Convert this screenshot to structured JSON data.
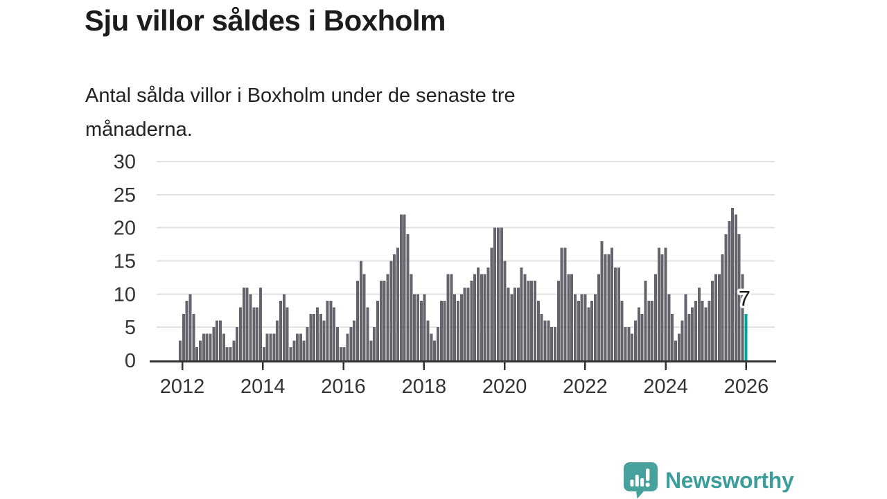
{
  "page": {
    "background": "#ffffff"
  },
  "header": {
    "title": "Sju villor såldes i Boxholm",
    "subtitle": "Antal sålda villor i Boxholm under de senaste tre månaderna.",
    "subtitle_lines": [
      "Antal sålda villor i Boxholm under de senaste tre",
      "månaderna."
    ]
  },
  "chart_data": {
    "type": "bar",
    "title": "Sju villor såldes i Boxholm",
    "subtitle": "Antal sålda villor i Boxholm under de senaste tre månaderna.",
    "frequency": "monthly",
    "start_month": "2011-12",
    "end_month": "2026-01",
    "ylim": [
      0,
      30
    ],
    "y_ticks": [
      0,
      5,
      10,
      15,
      20,
      25,
      30
    ],
    "x_tick_years": [
      "2012",
      "2014",
      "2016",
      "2018",
      "2020",
      "2022",
      "2024",
      "2026"
    ],
    "grid": true,
    "legend": false,
    "bar_color": "#63646c",
    "highlight_color": "#00a59d",
    "axis_color": "#333333",
    "grid_color": "#e2e2e2",
    "label_color": "#333333",
    "values": [
      3,
      7,
      9,
      10,
      7,
      2,
      3,
      4,
      4,
      4,
      5,
      6,
      6,
      4,
      2,
      2,
      3,
      5,
      8,
      11,
      11,
      10,
      8,
      8,
      11,
      2,
      4,
      4,
      4,
      6,
      9,
      10,
      8,
      2,
      3,
      4,
      4,
      3,
      5,
      7,
      7,
      8,
      7,
      6,
      9,
      9,
      8,
      5,
      2,
      2,
      4,
      5,
      6,
      12,
      15,
      13,
      8,
      3,
      5,
      9,
      12,
      12,
      13,
      15,
      16,
      17,
      22,
      22,
      19,
      13,
      10,
      10,
      9,
      10,
      6,
      4,
      3,
      5,
      9,
      9,
      13,
      13,
      10,
      9,
      10,
      11,
      11,
      12,
      13,
      14,
      13,
      13,
      14,
      17,
      20,
      20,
      20,
      15,
      11,
      10,
      11,
      11,
      14,
      13,
      12,
      12,
      12,
      9,
      7,
      6,
      6,
      5,
      5,
      12,
      17,
      17,
      13,
      13,
      10,
      9,
      10,
      10,
      8,
      9,
      10,
      13,
      18,
      16,
      16,
      17,
      14,
      14,
      9,
      5,
      5,
      4,
      6,
      8,
      7,
      12,
      9,
      9,
      13,
      17,
      16,
      17,
      10,
      7,
      3,
      4,
      6,
      10,
      7,
      8,
      9,
      11,
      9,
      8,
      9,
      12,
      13,
      13,
      16,
      19,
      21,
      23,
      22,
      19,
      13,
      7
    ],
    "highlight_last_value": 7,
    "annotation": {
      "text": "7"
    }
  },
  "footer": {
    "brand": "Newsworthy",
    "brand_color": "#3b9e9a",
    "logo_color": "#47a29e"
  }
}
